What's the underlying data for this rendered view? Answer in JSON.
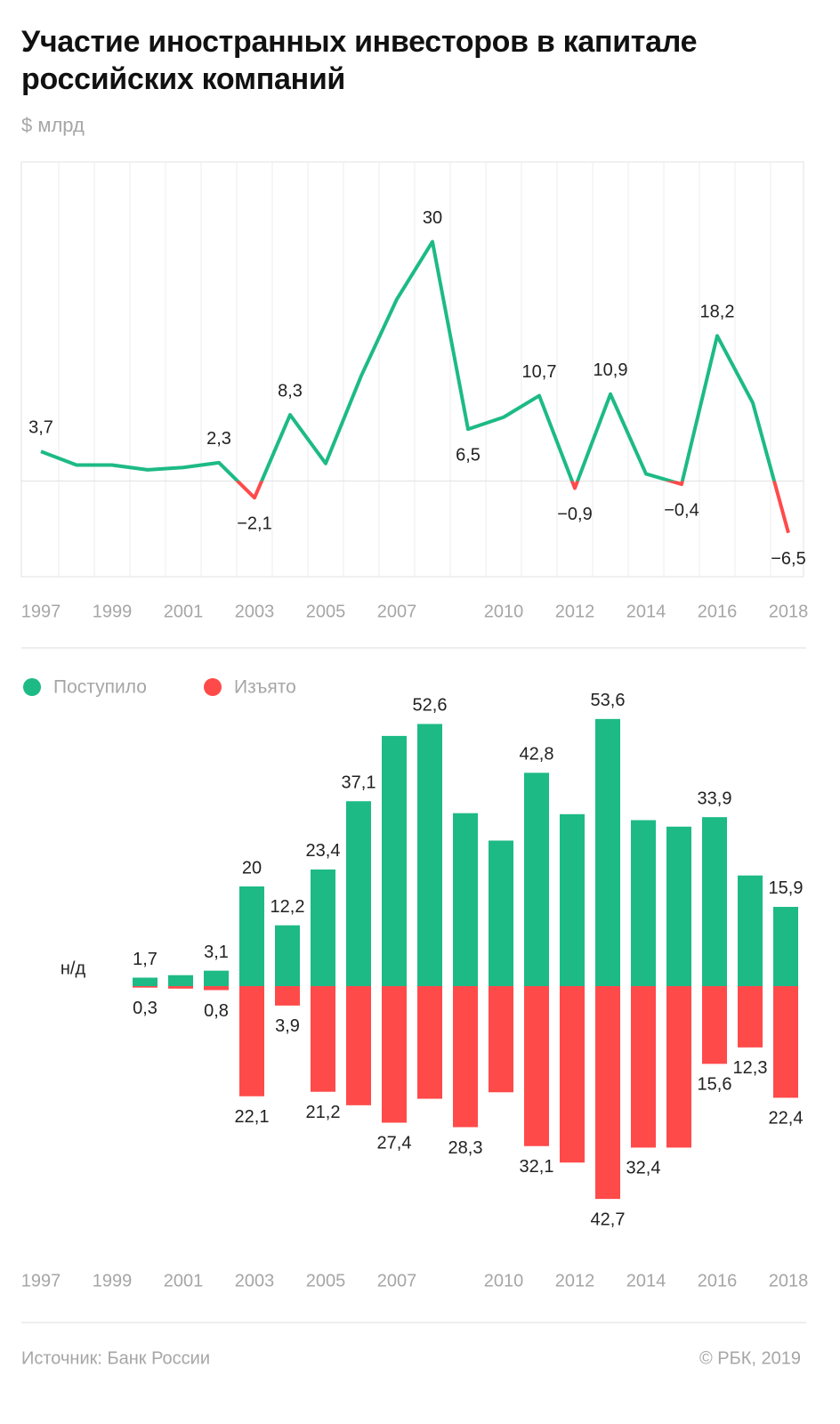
{
  "header": {
    "title": "Участие иностранных инвесторов в капитале российских компаний",
    "subtitle": "$ млрд"
  },
  "chart_data": [
    {
      "type": "line",
      "categories": [
        "1997",
        null,
        "1999",
        null,
        "2001",
        null,
        "2003",
        null,
        "2005",
        null,
        "2007",
        null,
        null,
        "2010",
        null,
        "2012",
        null,
        "2014",
        null,
        "2016",
        null,
        "2018"
      ],
      "values": [
        3.7,
        2.0,
        2.0,
        1.4,
        1.7,
        2.3,
        -2.1,
        8.3,
        2.2,
        13.2,
        22.8,
        30,
        6.5,
        8.0,
        10.7,
        -0.9,
        10.9,
        0.9,
        -0.4,
        18.2,
        9.8,
        -6.5
      ],
      "value_labels": [
        "3,7",
        null,
        null,
        null,
        null,
        "2,3",
        "−2,1",
        "8,3",
        null,
        null,
        null,
        "30",
        "6,5",
        null,
        "10,7",
        "−0,9",
        "10,9",
        null,
        "−0,4",
        "18,2",
        null,
        "−6,5"
      ],
      "color": "#1dba86",
      "negative_color": "#ff4a4a",
      "ylim": [
        -12,
        40
      ]
    },
    {
      "type": "bar",
      "categories": [
        "1997",
        null,
        "1999",
        null,
        "2001",
        null,
        "2003",
        null,
        "2005",
        null,
        "2007",
        null,
        null,
        "2010",
        null,
        "2012",
        null,
        "2014",
        null,
        "2016",
        null,
        "2018"
      ],
      "missing_label": "н/д",
      "ylim": [
        -45,
        55
      ],
      "series": [
        {
          "name": "Поступило",
          "color": "#1dba86",
          "direction": "up",
          "values": [
            null,
            null,
            null,
            1.7,
            2.2,
            3.1,
            20,
            12.2,
            23.4,
            37.1,
            50.2,
            52.6,
            34.7,
            29.2,
            42.8,
            34.5,
            53.6,
            33.3,
            32.0,
            33.9,
            22.2,
            15.9
          ],
          "value_labels": [
            null,
            null,
            null,
            "1,7",
            null,
            "3,1",
            "20",
            "12,2",
            "23,4",
            "37,1",
            null,
            "52,6",
            null,
            null,
            "42,8",
            null,
            "53,6",
            null,
            null,
            "33,9",
            null,
            "15,9"
          ]
        },
        {
          "name": "Изъято",
          "color": "#ff4a4a",
          "direction": "down",
          "values": [
            null,
            null,
            null,
            0.3,
            0.5,
            0.8,
            22.1,
            3.9,
            21.2,
            23.9,
            27.4,
            22.6,
            28.3,
            21.3,
            32.1,
            35.4,
            42.7,
            32.4,
            32.4,
            15.6,
            12.3,
            22.4
          ],
          "value_labels": [
            null,
            null,
            null,
            "0,3",
            null,
            "0,8",
            "22,1",
            "3,9",
            "21,2",
            null,
            "27,4",
            null,
            "28,3",
            null,
            "32,1",
            null,
            "42,7",
            "32,4",
            null,
            "15,6",
            "12,3",
            "22,4"
          ]
        }
      ]
    }
  ],
  "footer": {
    "source": "Источник: Банк России",
    "copyright": "© РБК, 2019"
  }
}
